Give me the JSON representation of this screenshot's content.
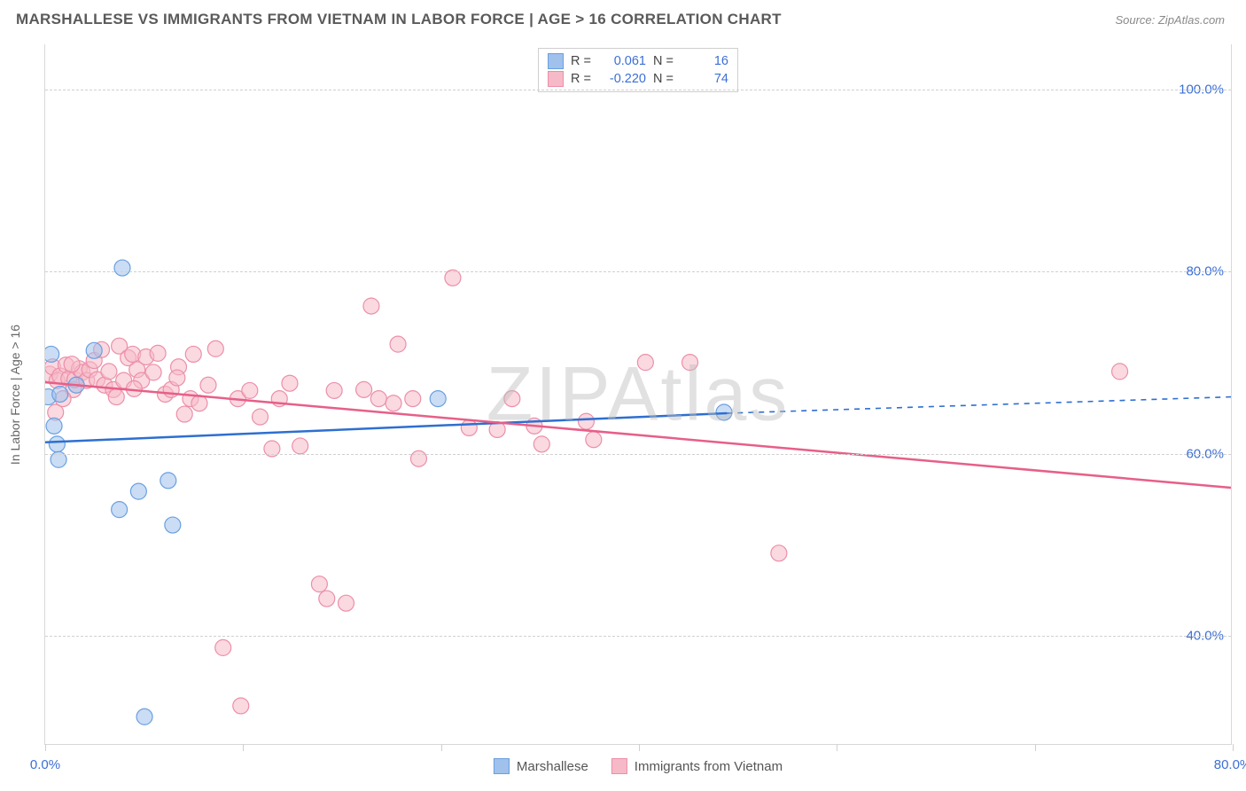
{
  "header": {
    "title": "MARSHALLESE VS IMMIGRANTS FROM VIETNAM IN LABOR FORCE | AGE > 16 CORRELATION CHART",
    "source": "Source: ZipAtlas.com"
  },
  "watermark": "ZIPAtlas",
  "axes": {
    "y_label": "In Labor Force | Age > 16",
    "x_min": 0,
    "x_max": 80,
    "y_min": 28,
    "y_max": 105,
    "y_ticks": [
      40,
      60,
      80,
      100
    ],
    "y_tick_labels": [
      "40.0%",
      "60.0%",
      "80.0%",
      "100.0%"
    ],
    "x_tick_positions": [
      0,
      13.3,
      26.7,
      40,
      53.3,
      66.7,
      80
    ],
    "x_min_label": "0.0%",
    "x_max_label": "80.0%",
    "grid_color": "#d0d0d0",
    "tick_label_color": "#3b6fd6",
    "tick_label_fontsize": 15
  },
  "series": {
    "a": {
      "name": "Marshallese",
      "color_fill": "#9fc1ec",
      "color_stroke": "#6a9fe0",
      "line_color": "#2e6fd0",
      "marker_radius": 9,
      "R_label": "R =",
      "R": "0.061",
      "N_label": "N =",
      "N": "16",
      "trend": {
        "x1": 0,
        "y1": 61.2,
        "x2": 46,
        "y2": 64.4,
        "x2_dash": 80,
        "y2_dash": 66.2
      },
      "points": [
        [
          0.2,
          66.2
        ],
        [
          0.4,
          70.9
        ],
        [
          0.8,
          61.0
        ],
        [
          0.9,
          59.3
        ],
        [
          1.0,
          66.5
        ],
        [
          3.3,
          71.3
        ],
        [
          5.2,
          80.4
        ],
        [
          5.0,
          53.8
        ],
        [
          6.3,
          55.8
        ],
        [
          6.7,
          31.0
        ],
        [
          8.3,
          57.0
        ],
        [
          8.6,
          52.1
        ],
        [
          26.5,
          66.0
        ],
        [
          45.8,
          64.5
        ],
        [
          2.1,
          67.5
        ],
        [
          0.6,
          63.0
        ]
      ]
    },
    "b": {
      "name": "Immigrants from Vietnam",
      "color_fill": "#f6b9c8",
      "color_stroke": "#ec8fa8",
      "line_color": "#e75f88",
      "marker_radius": 9,
      "R_label": "R =",
      "R": "-0.220",
      "N_label": "N =",
      "N": "74",
      "trend": {
        "x1": 0,
        "y1": 67.8,
        "x2": 80,
        "y2": 56.2
      },
      "points": [
        [
          0.3,
          68.7
        ],
        [
          0.5,
          69.5
        ],
        [
          0.8,
          68.0
        ],
        [
          1.0,
          68.5
        ],
        [
          1.4,
          69.7
        ],
        [
          1.6,
          68.2
        ],
        [
          1.9,
          67.0
        ],
        [
          2.0,
          68.1
        ],
        [
          2.3,
          69.3
        ],
        [
          2.5,
          68.9
        ],
        [
          2.8,
          68.0
        ],
        [
          3.0,
          69.2
        ],
        [
          3.3,
          70.2
        ],
        [
          3.5,
          68.1
        ],
        [
          3.8,
          71.4
        ],
        [
          4.0,
          67.5
        ],
        [
          4.3,
          69.0
        ],
        [
          4.6,
          67.0
        ],
        [
          5.0,
          71.8
        ],
        [
          5.3,
          68.0
        ],
        [
          5.6,
          70.5
        ],
        [
          5.9,
          70.9
        ],
        [
          6.2,
          69.2
        ],
        [
          6.5,
          68.0
        ],
        [
          6.8,
          70.6
        ],
        [
          7.3,
          68.9
        ],
        [
          7.6,
          71.0
        ],
        [
          8.1,
          66.5
        ],
        [
          8.5,
          67.0
        ],
        [
          9.0,
          69.5
        ],
        [
          9.4,
          64.3
        ],
        [
          9.8,
          66.0
        ],
        [
          10.4,
          65.5
        ],
        [
          11.0,
          67.5
        ],
        [
          11.5,
          71.5
        ],
        [
          12.0,
          38.6
        ],
        [
          13.0,
          66.0
        ],
        [
          13.2,
          32.2
        ],
        [
          13.8,
          66.9
        ],
        [
          14.5,
          64.0
        ],
        [
          15.3,
          60.5
        ],
        [
          15.8,
          66.0
        ],
        [
          16.5,
          67.7
        ],
        [
          17.2,
          60.8
        ],
        [
          18.5,
          45.6
        ],
        [
          19.0,
          44.0
        ],
        [
          20.3,
          43.5
        ],
        [
          19.5,
          66.9
        ],
        [
          21.5,
          67.0
        ],
        [
          22.0,
          76.2
        ],
        [
          22.5,
          66.0
        ],
        [
          23.5,
          65.5
        ],
        [
          23.8,
          72.0
        ],
        [
          24.8,
          66.0
        ],
        [
          25.2,
          59.4
        ],
        [
          27.5,
          79.3
        ],
        [
          28.6,
          62.8
        ],
        [
          30.5,
          62.6
        ],
        [
          31.5,
          66.0
        ],
        [
          33.0,
          63.0
        ],
        [
          33.5,
          61.0
        ],
        [
          36.5,
          63.5
        ],
        [
          37.0,
          61.5
        ],
        [
          40.5,
          70.0
        ],
        [
          43.5,
          70.0
        ],
        [
          49.5,
          49.0
        ],
        [
          72.5,
          69.0
        ],
        [
          0.7,
          64.5
        ],
        [
          1.2,
          66.0
        ],
        [
          1.8,
          69.8
        ],
        [
          4.8,
          66.2
        ],
        [
          6.0,
          67.1
        ],
        [
          8.9,
          68.3
        ],
        [
          10.0,
          70.9
        ]
      ]
    }
  },
  "legend_bottom": {
    "a_label": "Marshallese",
    "b_label": "Immigrants from Vietnam"
  }
}
